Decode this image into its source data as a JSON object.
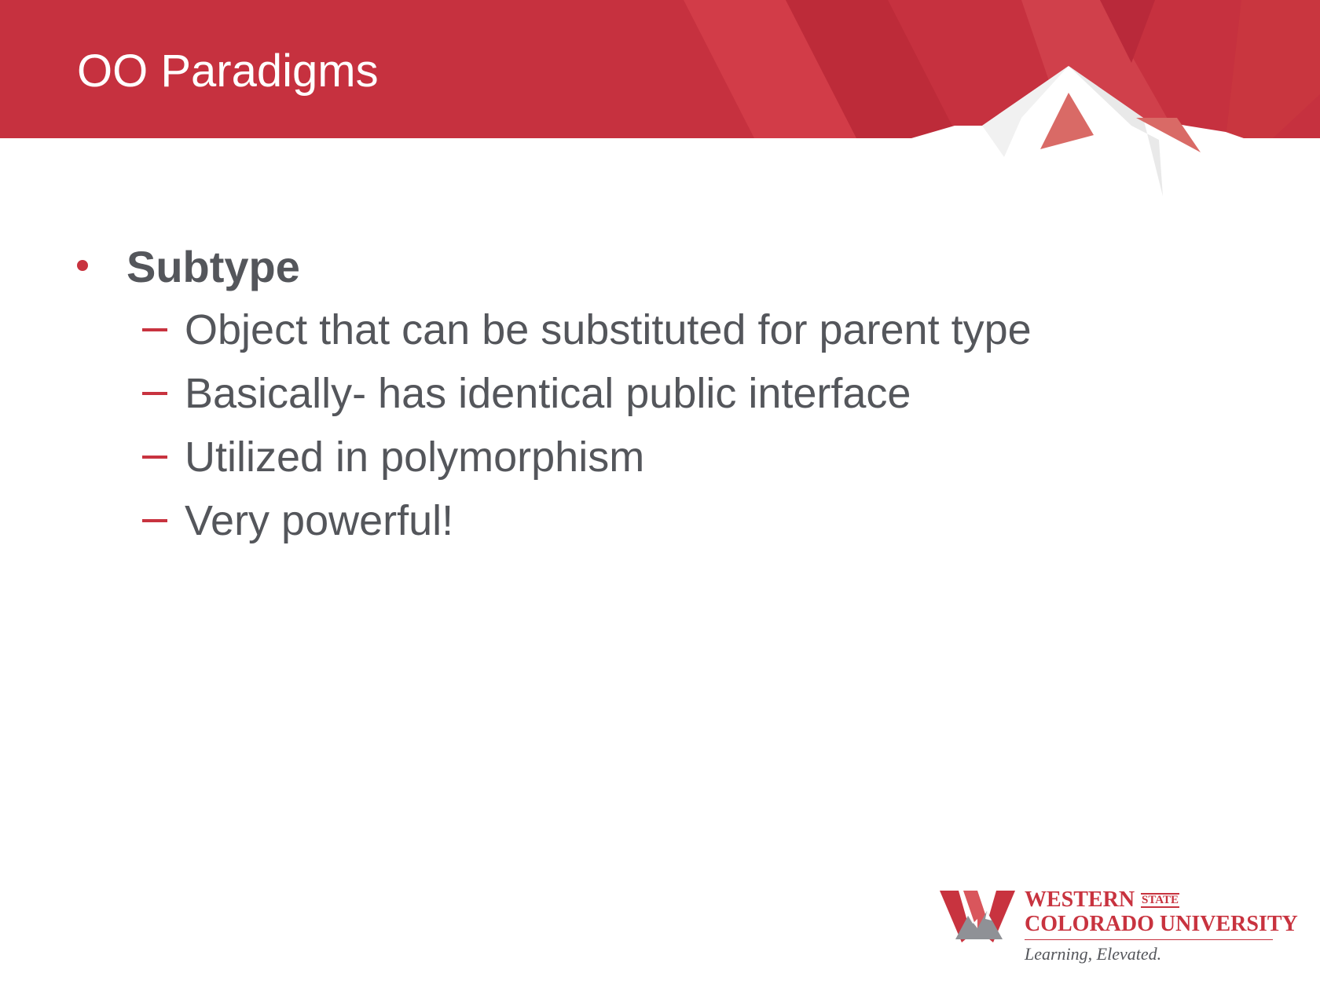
{
  "slide": {
    "title": "OO Paradigms",
    "bullets": [
      {
        "text": "Subtype",
        "subitems": [
          "Object that can be substituted for parent type",
          "Basically- has identical public interface",
          "Utilized in polymorphism",
          "Very powerful!"
        ]
      }
    ]
  },
  "logo": {
    "line1": "WESTERN",
    "state": "STATE",
    "line2": "COLORADO UNIVERSITY",
    "tagline": "Learning, Elevated."
  },
  "colors": {
    "accent": "#c8333f",
    "text": "#54565b",
    "background": "#ffffff"
  }
}
